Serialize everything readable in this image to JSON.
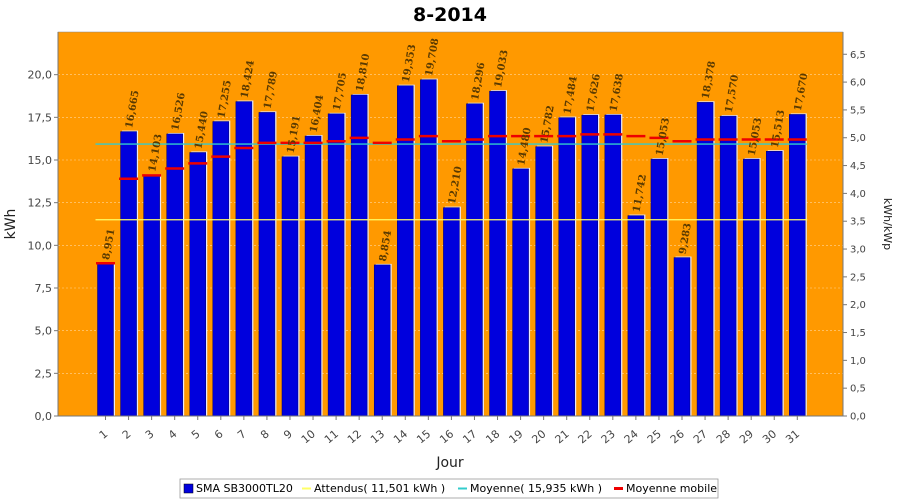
{
  "chart_data": {
    "type": "bar",
    "title": "8-2014",
    "xlabel": "Jour",
    "ylabel": "kWh",
    "ylabel_right": "kWh/kWp",
    "ylim": [
      0,
      22.5
    ],
    "ylim_right": [
      0,
      6.9
    ],
    "yticks": [
      "0,0",
      "2,5",
      "5,0",
      "7,5",
      "10,0",
      "12,5",
      "15,0",
      "17,5",
      "20,0"
    ],
    "yticks_right": [
      "0,0",
      "0,5",
      "1,0",
      "1,5",
      "2,0",
      "2,5",
      "3,0",
      "3,5",
      "4,0",
      "4,5",
      "5,0",
      "5,5",
      "6,0",
      "6,5"
    ],
    "categories": [
      "1",
      "2",
      "3",
      "4",
      "5",
      "6",
      "7",
      "8",
      "9",
      "10",
      "11",
      "12",
      "13",
      "14",
      "15",
      "16",
      "17",
      "18",
      "19",
      "20",
      "21",
      "22",
      "23",
      "24",
      "25",
      "26",
      "27",
      "28",
      "29",
      "30",
      "31"
    ],
    "series": [
      {
        "name": "SMA SB3000TL20",
        "color": "#0000dd",
        "values": [
          8.951,
          16.665,
          14.103,
          16.526,
          15.44,
          17.255,
          18.424,
          17.789,
          15.191,
          16.404,
          17.705,
          18.81,
          8.854,
          19.353,
          19.708,
          12.21,
          18.296,
          19.033,
          14.48,
          15.782,
          17.484,
          17.626,
          17.638,
          11.742,
          15.053,
          9.283,
          18.378,
          17.57,
          15.053,
          15.513,
          17.67
        ],
        "labels": [
          "8,951",
          "16,665",
          "14,103",
          "16,526",
          "15,440",
          "17,255",
          "18,424",
          "17,789",
          "15,191",
          "16,404",
          "17,705",
          "18,810",
          "8,854",
          "19,353",
          "19,708",
          "12,210",
          "18,296",
          "19,033",
          "14,480",
          "15,782",
          "17,484",
          "17,626",
          "17,638",
          "11,742",
          "15,053",
          "9,283",
          "18,378",
          "17,570",
          "15,053",
          "15,513",
          "17,670"
        ]
      }
    ],
    "expected": {
      "name": "Attendus( 11,501 kWh )",
      "value": 11.501,
      "color": "#ffff66"
    },
    "average": {
      "name": "Moyenne( 15,935 kWh )",
      "value": 15.935,
      "color": "#33cccc"
    },
    "moving_average": {
      "name": "Moyenne mobile",
      "color": "#ee0000",
      "values": [
        8.95,
        13.9,
        14.1,
        14.5,
        14.8,
        15.2,
        15.7,
        16.0,
        16.0,
        16.0,
        16.1,
        16.3,
        16.0,
        16.2,
        16.4,
        16.1,
        16.2,
        16.4,
        16.4,
        16.4,
        16.4,
        16.5,
        16.5,
        16.4,
        16.3,
        16.1,
        16.2,
        16.2,
        16.2,
        16.2,
        16.2
      ]
    },
    "background": "#ff9900",
    "grid": true,
    "legend_position": "bottom"
  }
}
